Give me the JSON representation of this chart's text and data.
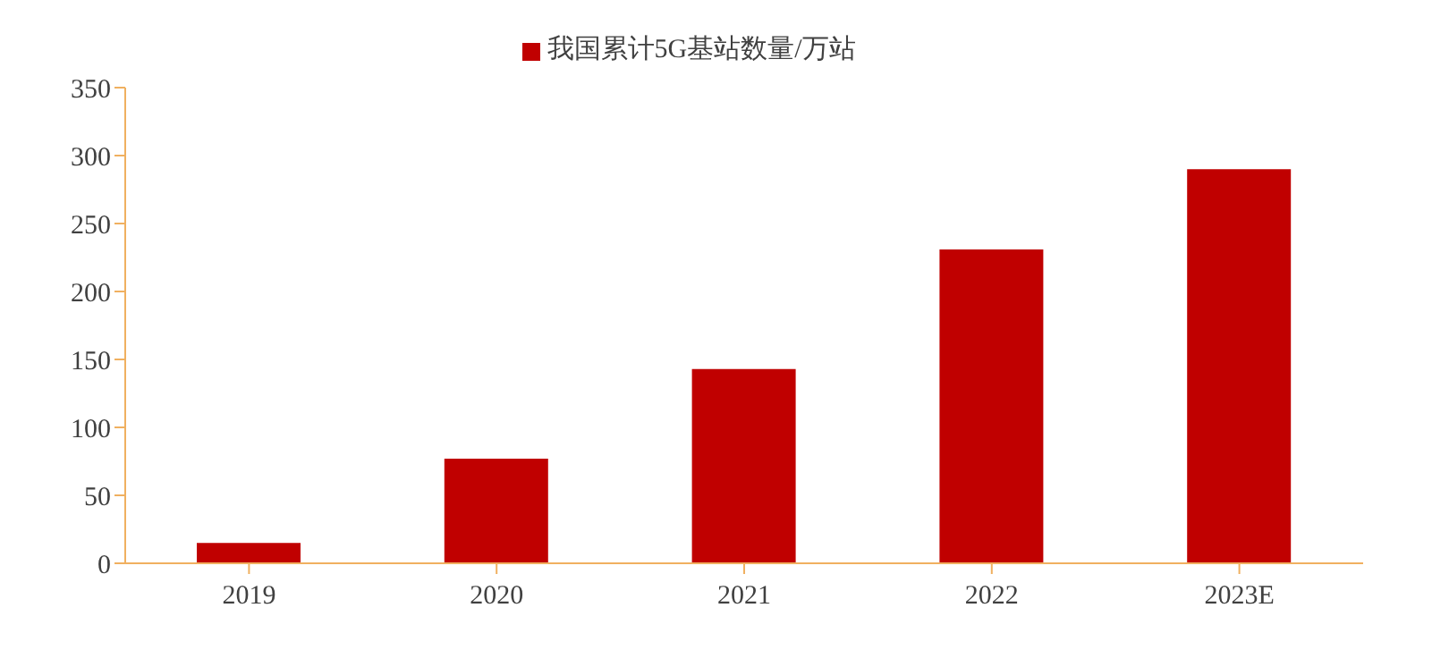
{
  "chart_data": {
    "type": "bar",
    "categories": [
      "2019",
      "2020",
      "2021",
      "2022",
      "2023E"
    ],
    "series": [
      {
        "name": "我国累计5G基站数量/万站",
        "color": "#c00000",
        "values": [
          15,
          77,
          143,
          231,
          290
        ]
      }
    ],
    "ylim": [
      0,
      350
    ],
    "yticks": [
      0,
      50,
      100,
      150,
      200,
      250,
      300,
      350
    ],
    "grid": false,
    "legend": "top"
  }
}
